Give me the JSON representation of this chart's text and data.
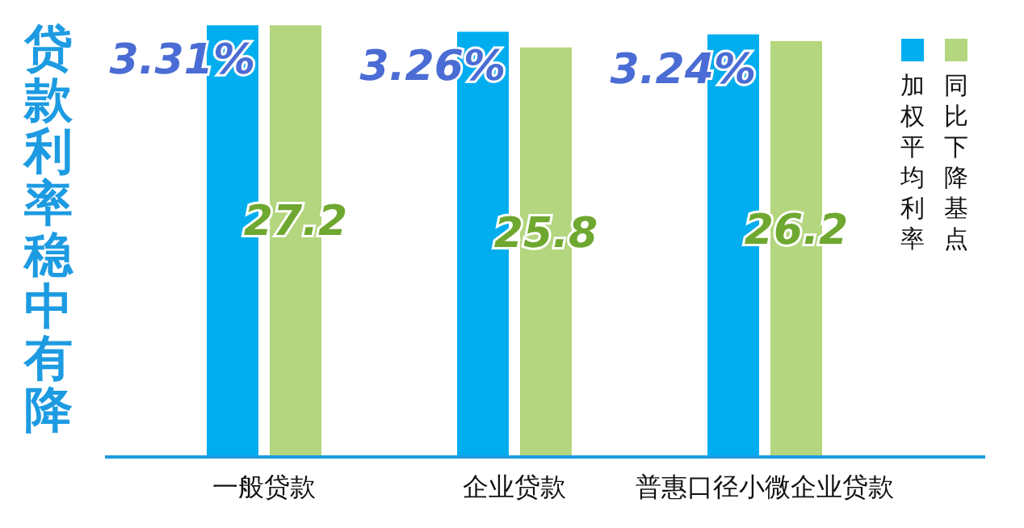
{
  "chart_data": {
    "type": "bar",
    "title": "贷款利率稳中有降",
    "categories": [
      "一般贷款",
      "企业贷款",
      "普惠口径小微企业贷款"
    ],
    "series": [
      {
        "name": "加权平均利率",
        "color": "#00aeef",
        "values": [
          3.31,
          3.26,
          3.24
        ],
        "value_labels": [
          "3.31%",
          "3.26%",
          "3.24%"
        ]
      },
      {
        "name": "同比下降基点",
        "color": "#b3d67e",
        "values": [
          27.2,
          25.8,
          26.2
        ],
        "axis": "y2",
        "value_labels": [
          "27.2",
          "25.8",
          "26.2"
        ]
      }
    ],
    "tick_labels": "x",
    "legend": "top right",
    "grid": false
  }
}
